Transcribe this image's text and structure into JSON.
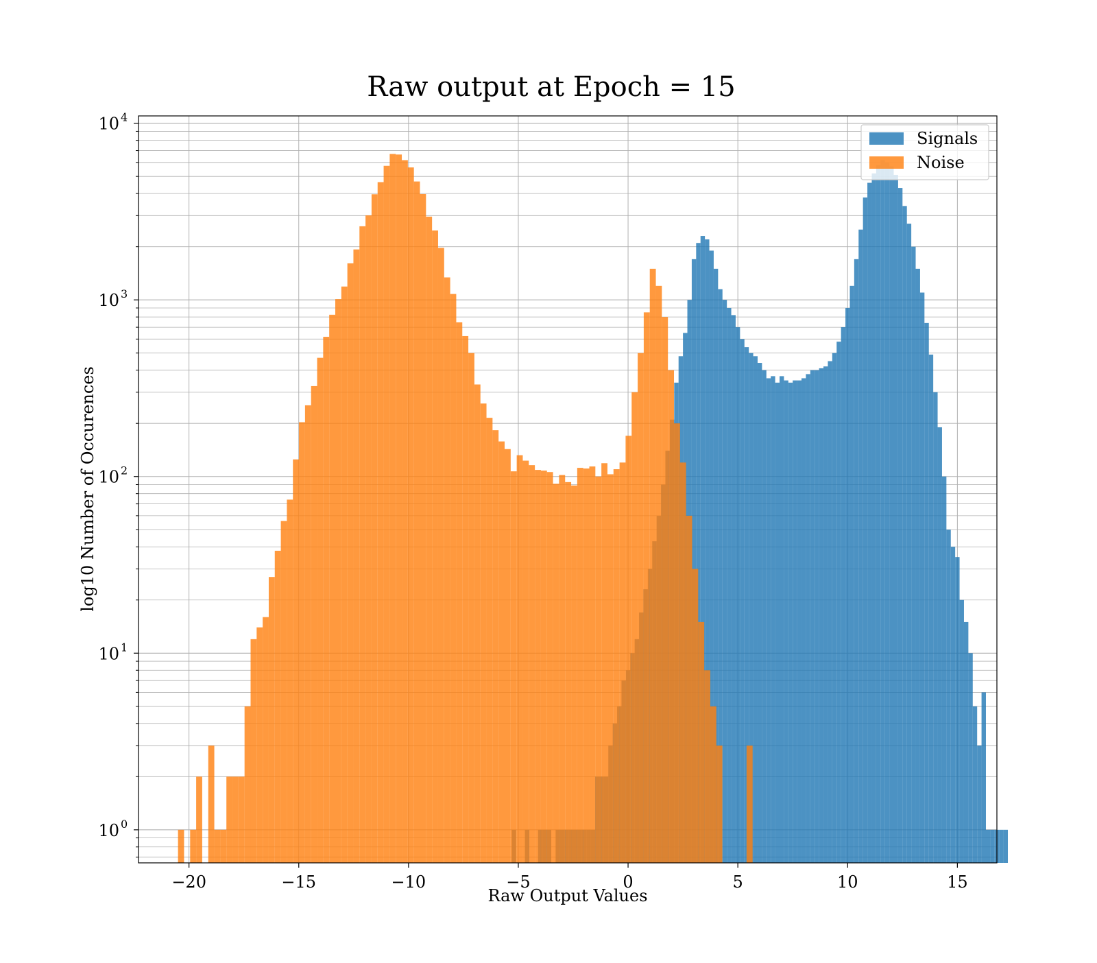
{
  "chart_data": {
    "type": "bar",
    "title": "Raw output at Epoch = 15",
    "xlabel": "Raw Output Values",
    "ylabel": "log10 Number of Occurences",
    "xlim": [
      -22.3,
      16.8
    ],
    "ylim": [
      0.65,
      11000
    ],
    "yscale": "log",
    "grid": true,
    "legend_position": "top-right",
    "x_ticks": [
      -20,
      -15,
      -10,
      -5,
      0,
      5,
      10,
      15
    ],
    "x_tick_labels": [
      "−20",
      "−15",
      "−10",
      "−5",
      "0",
      "5",
      "10",
      "15"
    ],
    "y_ticks": [
      {
        "value": 1,
        "base": "10",
        "exp": "0"
      },
      {
        "value": 10,
        "base": "10",
        "exp": "1"
      },
      {
        "value": 100,
        "base": "10",
        "exp": "2"
      },
      {
        "value": 1000,
        "base": "10",
        "exp": "3"
      },
      {
        "value": 10000,
        "base": "10",
        "exp": "4"
      }
    ],
    "series": [
      {
        "name": "Signals",
        "color": "#1f77b4",
        "opacity": 0.8,
        "bin_start": -5.3,
        "bin_width": 0.2,
        "values": [
          1,
          0,
          0,
          1,
          0,
          0,
          1,
          1,
          1,
          0,
          1,
          1,
          1,
          1,
          1,
          1,
          1,
          1,
          1,
          2,
          2,
          2,
          3,
          4,
          5,
          7,
          8,
          10,
          12,
          17,
          23,
          30,
          43,
          60,
          90,
          140,
          210,
          340,
          480,
          650,
          1000,
          1700,
          2100,
          2300,
          2200,
          1900,
          1500,
          1150,
          1000,
          900,
          820,
          700,
          600,
          540,
          500,
          480,
          440,
          400,
          360,
          370,
          340,
          370,
          350,
          340,
          350,
          350,
          360,
          380,
          400,
          400,
          410,
          420,
          450,
          500,
          580,
          700,
          900,
          1200,
          1700,
          2500,
          3800,
          4600,
          5200,
          5800,
          6200,
          6000,
          5700,
          5100,
          4300,
          3400,
          2700,
          2000,
          1500,
          1100,
          740,
          490,
          300,
          190,
          100,
          50,
          40,
          35,
          20,
          15,
          10,
          5,
          3,
          6,
          1,
          1,
          1,
          1,
          1
        ]
      },
      {
        "name": "Noise",
        "color": "#ff7f0e",
        "opacity": 0.8,
        "bin_start": -20.5,
        "bin_width": 0.2755,
        "values": [
          1,
          0,
          1,
          2,
          0,
          3,
          1,
          1,
          2,
          2,
          2,
          5,
          12,
          14,
          16,
          27,
          38,
          56,
          74,
          125,
          203,
          253,
          325,
          470,
          618,
          824,
          1010,
          1190,
          1610,
          1930,
          2610,
          3010,
          3960,
          4640,
          5740,
          6700,
          6650,
          6180,
          5620,
          4680,
          3970,
          2960,
          2470,
          1970,
          1340,
          1080,
          746,
          624,
          500,
          332,
          259,
          215,
          183,
          158,
          143,
          107,
          132,
          123,
          116,
          109,
          108,
          106,
          91,
          102,
          93,
          89,
          112,
          111,
          114,
          100,
          119,
          103,
          110,
          120,
          170,
          300,
          500,
          850,
          1500,
          1200,
          800,
          400,
          200,
          120,
          60,
          30,
          15,
          8,
          5,
          3,
          0,
          0,
          0,
          0,
          3
        ]
      }
    ]
  }
}
